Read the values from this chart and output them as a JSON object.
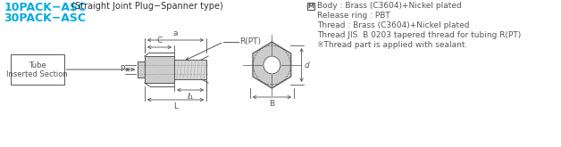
{
  "bg_color": "#ffffff",
  "title_line1": "10PACK−ASC",
  "title_line1_suffix": " (Straight Joint Plug−Spanner type)",
  "title_line2": "30PACK−ASC",
  "title_color": "#00aadd",
  "title_suffix_color": "#333333",
  "material_lines": [
    "Body : Brass (C3604)+Nickel plated",
    "Release ring : PBT",
    "Thread : Brass (C3604)+Nickel plated",
    "Thread JIS  B 0203 tapered thread for tubing R(PT)",
    "※Thread part is applied with sealant."
  ],
  "line_color": "#555555",
  "dim_labels": [
    "a",
    "C",
    "R(PT)",
    "P",
    "ℓ₁",
    "L",
    "d",
    "B"
  ]
}
